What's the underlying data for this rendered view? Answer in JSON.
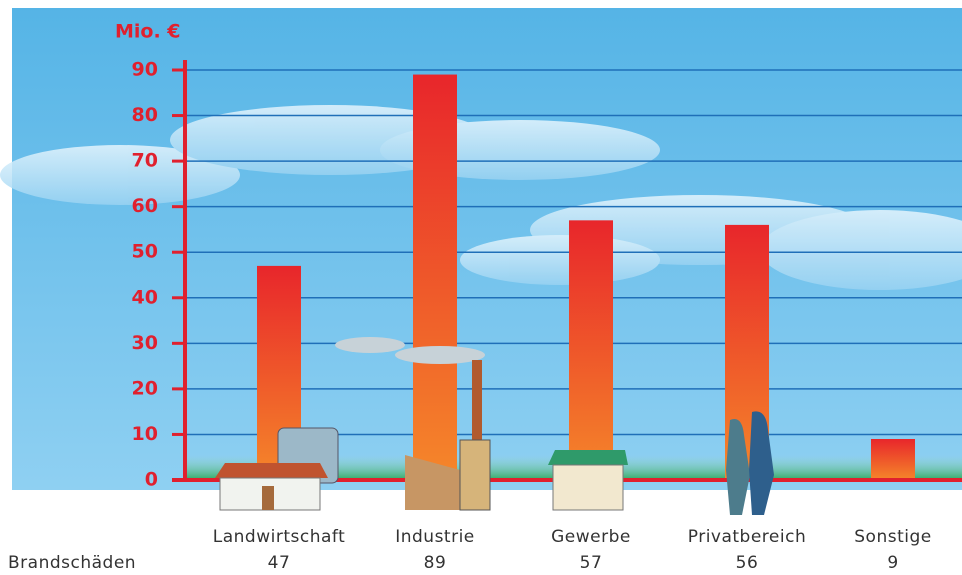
{
  "chart_data": {
    "type": "bar",
    "y_label": "Mio. €",
    "row_label": "Brandschäden",
    "categories": [
      "Landwirtschaft",
      "Industrie",
      "Gewerbe",
      "Privatbereich",
      "Sonstige"
    ],
    "values": [
      47,
      89,
      57,
      56,
      9
    ],
    "colors": [
      "#e8262b",
      "#f5872a"
    ],
    "axis_color": "#e0202e",
    "grid_color": "#1f6fb8",
    "ylim": [
      0,
      90
    ],
    "yticks": [
      0,
      10,
      20,
      30,
      40,
      50,
      60,
      70,
      80,
      90
    ],
    "grid": true
  }
}
